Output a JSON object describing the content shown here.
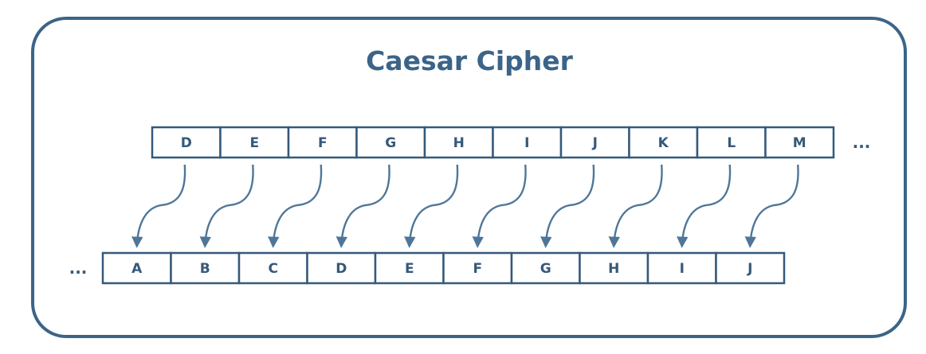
{
  "title": "Caesar Cipher",
  "colors": {
    "frame_border": "#3b6488",
    "title": "#3b6488",
    "cell_border": "#35597a",
    "cell_text": "#35597a",
    "arrow": "#4f7698"
  },
  "top_row": {
    "letters": [
      "D",
      "E",
      "F",
      "G",
      "H",
      "I",
      "J",
      "K",
      "L",
      "M"
    ],
    "trailing_ellipsis": "..."
  },
  "bottom_row": {
    "leading_ellipsis": "...",
    "letters": [
      "A",
      "B",
      "C",
      "D",
      "E",
      "F",
      "G",
      "H",
      "I",
      "J"
    ]
  },
  "mapping": {
    "shift": 3,
    "direction": "top letter maps to the letter 3 positions earlier in the bottom row"
  }
}
